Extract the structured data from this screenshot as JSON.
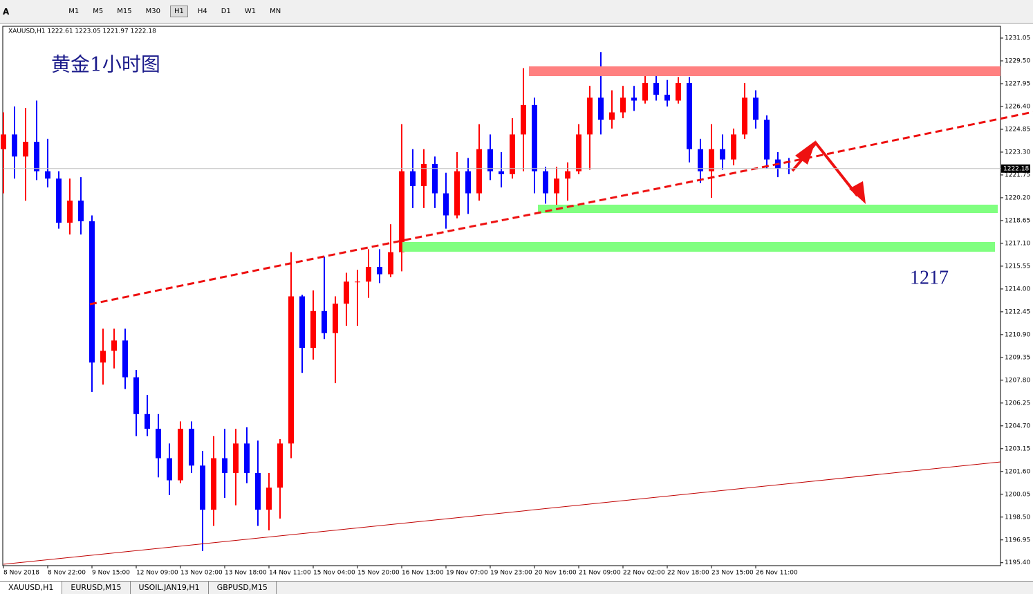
{
  "toolbar": {
    "font_button": "A",
    "timeframes": [
      "M1",
      "M5",
      "M15",
      "M30",
      "H1",
      "H4",
      "D1",
      "W1",
      "MN"
    ]
  },
  "tabs": [
    "XAUUSD,H1",
    "EURUSD,M15",
    "USOIL.JAN19,H1",
    "GBPUSD,M15"
  ],
  "chart_data": {
    "type": "candlestick",
    "title": "黄金1小时图",
    "symbol_info": "XAUUSD,H1  1222.61 1223.05 1221.97 1222.18",
    "annotation": "1217",
    "up_color": "#ff0000",
    "down_color": "#0000ff",
    "last_price": 1222.18,
    "x": [
      0,
      4,
      8,
      12,
      16,
      20,
      24,
      28,
      32,
      36,
      40,
      44,
      48,
      52,
      56,
      60,
      64,
      68,
      72,
      76,
      80,
      84,
      88,
      92,
      96,
      100,
      104,
      108,
      112,
      116,
      120,
      124,
      128,
      132,
      136,
      140,
      144,
      148,
      152,
      156,
      160,
      164,
      168,
      172,
      176,
      180,
      184,
      188,
      192,
      196,
      200,
      204,
      208,
      212,
      216,
      220,
      224,
      228,
      232,
      236,
      240,
      244,
      248,
      252,
      256,
      260,
      264,
      268,
      272,
      276,
      280,
      284
    ],
    "open": [
      1223.5,
      1224.5,
      1223,
      1224,
      1222,
      1221.5,
      1218.5,
      1220,
      1218.6,
      1209,
      1209.8,
      1210.5,
      1208,
      1205.5,
      1204.5,
      1202.5,
      1201,
      1204.5,
      1202,
      1199,
      1202.5,
      1201.5,
      1203.5,
      1201.5,
      1199,
      1200.5,
      1203.5,
      1213.5,
      1210,
      1212.5,
      1211,
      1213,
      1214.5,
      1214.5,
      1215.5,
      1215,
      1216.5,
      1222,
      1221,
      1222.5,
      1220.5,
      1219,
      1222,
      1220.5,
      1223.5,
      1222,
      1221.8,
      1224.5,
      1226.5,
      1222,
      1220.5,
      1221.5,
      1222,
      1224.5,
      1227,
      1225.5,
      1226,
      1227,
      1226.8,
      1228,
      1227.2,
      1226.8,
      1228,
      1223.5,
      1222,
      1223.5,
      1222.8,
      1224.5,
      1227,
      1225.5,
      1222.8,
      1222.2
    ],
    "high": [
      1226,
      1226.4,
      1226.3,
      1226.8,
      1224.2,
      1222,
      1221.5,
      1221.6,
      1219,
      1211.3,
      1211.3,
      1211.3,
      1208.5,
      1206.8,
      1205.5,
      1203.5,
      1205,
      1205,
      1203,
      1204,
      1204.5,
      1204.5,
      1204.6,
      1203.7,
      1201.5,
      1203.8,
      1216.5,
      1213.6,
      1213.9,
      1216.2,
      1213.5,
      1215.1,
      1215.3,
      1216.7,
      1216.7,
      1218.4,
      1225.2,
      1223.5,
      1223.5,
      1223,
      1221.9,
      1223.3,
      1222.9,
      1225.2,
      1224.5,
      1223.3,
      1225.6,
      1229,
      1227,
      1222.3,
      1222.3,
      1222.6,
      1225.2,
      1227.8,
      1230.1,
      1227.5,
      1227.8,
      1227.8,
      1228.9,
      1228.7,
      1228.2,
      1228.4,
      1228.4,
      1224.2,
      1225.2,
      1224.5,
      1224.9,
      1228,
      1227.5,
      1225.8,
      1223.3,
      1222.9
    ],
    "low": [
      1220.5,
      1221.5,
      1220,
      1221.4,
      1220.9,
      1218.1,
      1217.7,
      1217.7,
      1207,
      1207.5,
      1208.6,
      1207.2,
      1204,
      1204,
      1201.2,
      1200,
      1200.8,
      1201.5,
      1196.2,
      1197.9,
      1199.8,
      1199.3,
      1200.8,
      1197.9,
      1197.6,
      1198.4,
      1202.5,
      1208.3,
      1209.2,
      1210.6,
      1207.6,
      1211.5,
      1211.5,
      1213.4,
      1214.4,
      1214.8,
      1215.2,
      1219.5,
      1219.5,
      1219.5,
      1218.1,
      1218.8,
      1219.1,
      1220,
      1221.4,
      1220.9,
      1221.5,
      1222,
      1220.5,
      1219.8,
      1219.5,
      1220,
      1221.8,
      1222.1,
      1224.5,
      1224.9,
      1225.6,
      1226.1,
      1226.6,
      1226.8,
      1226.4,
      1226.6,
      1222.6,
      1221.2,
      1220.2,
      1222.1,
      1222.4,
      1224.2,
      1224.9,
      1222.2,
      1221.6,
      1221.8
    ],
    "close": [
      1224.5,
      1223,
      1224,
      1222,
      1221.5,
      1218.5,
      1220,
      1218.6,
      1209,
      1209.8,
      1210.5,
      1208,
      1205.5,
      1204.5,
      1202.5,
      1201,
      1204.5,
      1202,
      1199,
      1202.5,
      1201.5,
      1203.5,
      1201.5,
      1199,
      1200.5,
      1203.5,
      1213.5,
      1210,
      1212.5,
      1211,
      1213,
      1214.5,
      1214.5,
      1215.5,
      1215,
      1216.5,
      1222,
      1221,
      1222.5,
      1220.5,
      1219,
      1222,
      1220.5,
      1223.5,
      1222,
      1221.8,
      1224.5,
      1226.5,
      1222,
      1220.5,
      1221.5,
      1222,
      1224.5,
      1227,
      1225.5,
      1226,
      1227,
      1226.8,
      1228,
      1227.2,
      1226.8,
      1228,
      1223.5,
      1222,
      1223.5,
      1222.8,
      1224.5,
      1227,
      1225.5,
      1222.8,
      1222.2,
      1222.18
    ],
    "xlim": [
      0,
      360.5
    ],
    "xticks": [
      {
        "value": 0,
        "label": "8 Nov 2018"
      },
      {
        "value": 16,
        "label": "8 Nov 22:00"
      },
      {
        "value": 32,
        "label": "9 Nov 15:00"
      },
      {
        "value": 48,
        "label": "12 Nov 09:00"
      },
      {
        "value": 64,
        "label": "13 Nov 02:00"
      },
      {
        "value": 80,
        "label": "13 Nov 18:00"
      },
      {
        "value": 96,
        "label": "14 Nov 11:00"
      },
      {
        "value": 112,
        "label": "15 Nov 04:00"
      },
      {
        "value": 128,
        "label": "15 Nov 20:00"
      },
      {
        "value": 144,
        "label": "16 Nov 13:00"
      },
      {
        "value": 160,
        "label": "19 Nov 07:00"
      },
      {
        "value": 176,
        "label": "19 Nov 23:00"
      },
      {
        "value": 192,
        "label": "20 Nov 16:00"
      },
      {
        "value": 208,
        "label": "21 Nov 09:00"
      },
      {
        "value": 224,
        "label": "22 Nov 02:00"
      },
      {
        "value": 240,
        "label": "22 Nov 18:00"
      },
      {
        "value": 256,
        "label": "23 Nov 15:00"
      },
      {
        "value": 272,
        "label": "26 Nov 11:00"
      }
    ],
    "ylim": [
      1195.2,
      1231.85
    ],
    "yticks": [
      {
        "value": 1195.4,
        "label": "1195.40"
      },
      1196.95,
      {
        "value": 1198.5,
        "label": "1198.50"
      },
      1200.05,
      {
        "value": 1201.6,
        "label": "1201.60"
      },
      1203.15,
      {
        "value": 1204.7,
        "label": "1204.70"
      },
      1206.25,
      {
        "value": 1207.8,
        "label": "1207.80"
      },
      1209.35,
      {
        "value": 1210.9,
        "label": "1210.90"
      },
      1212.45,
      {
        "value": 1214,
        "label": "1214.00"
      },
      1215.55,
      {
        "value": 1217.1,
        "label": "1217.10"
      },
      1218.65,
      {
        "value": 1220.2,
        "label": "1220.20"
      },
      1221.75,
      {
        "value": 1223.3,
        "label": "1223.30"
      },
      1224.85,
      {
        "value": 1226.4,
        "label": "1226.40"
      },
      1227.95,
      {
        "value": 1229.5,
        "label": "1229.50"
      },
      1231.05
    ]
  }
}
